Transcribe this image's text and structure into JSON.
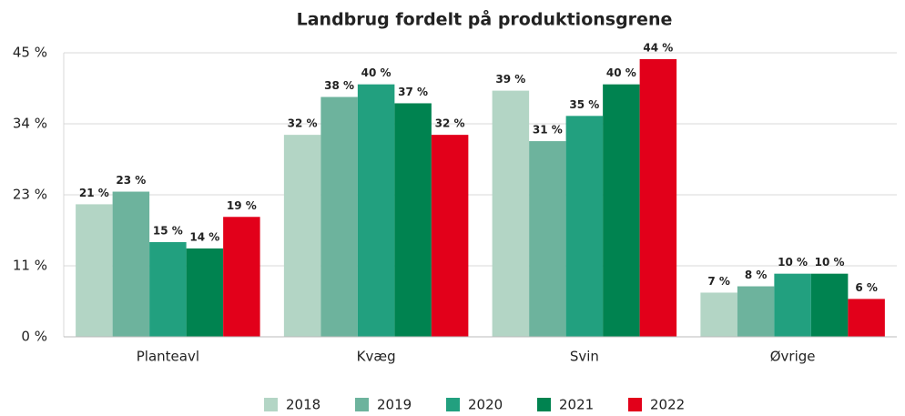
{
  "chart_data": {
    "type": "bar",
    "title": "Landbrug fordelt på produktionsgrene",
    "categories": [
      "Planteavl",
      "Kvæg",
      "Svin",
      "Øvrige"
    ],
    "series": [
      {
        "name": "2018",
        "color": "#b3d5c5",
        "values": [
          21,
          32,
          39,
          7
        ],
        "value_labels": [
          "21 %",
          "32 %",
          "39 %",
          "7 %"
        ]
      },
      {
        "name": "2019",
        "color": "#6db39d",
        "values": [
          23,
          38,
          31,
          8
        ],
        "value_labels": [
          "23 %",
          "38 %",
          "31 %",
          "8 %"
        ]
      },
      {
        "name": "2020",
        "color": "#22a07f",
        "values": [
          15,
          40,
          35,
          10
        ],
        "value_labels": [
          "15 %",
          "40 %",
          "35 %",
          "10 %"
        ]
      },
      {
        "name": "2021",
        "color": "#008350",
        "values": [
          14,
          37,
          40,
          10
        ],
        "value_labels": [
          "14 %",
          "37 %",
          "40 %",
          "10 %"
        ]
      },
      {
        "name": "2022",
        "color": "#e2001a",
        "values": [
          19,
          32,
          44,
          6
        ],
        "value_labels": [
          "19 %",
          "32 %",
          "44 %",
          "6 %"
        ]
      }
    ],
    "ylim": [
      0,
      45
    ],
    "yticks": [
      {
        "value": 0,
        "label": "0 %"
      },
      {
        "value": 11.25,
        "label": "11 %"
      },
      {
        "value": 22.5,
        "label": "23 %"
      },
      {
        "value": 33.75,
        "label": "34 %"
      },
      {
        "value": 45,
        "label": "45 %"
      }
    ],
    "grid": true,
    "legend": "bottom"
  }
}
